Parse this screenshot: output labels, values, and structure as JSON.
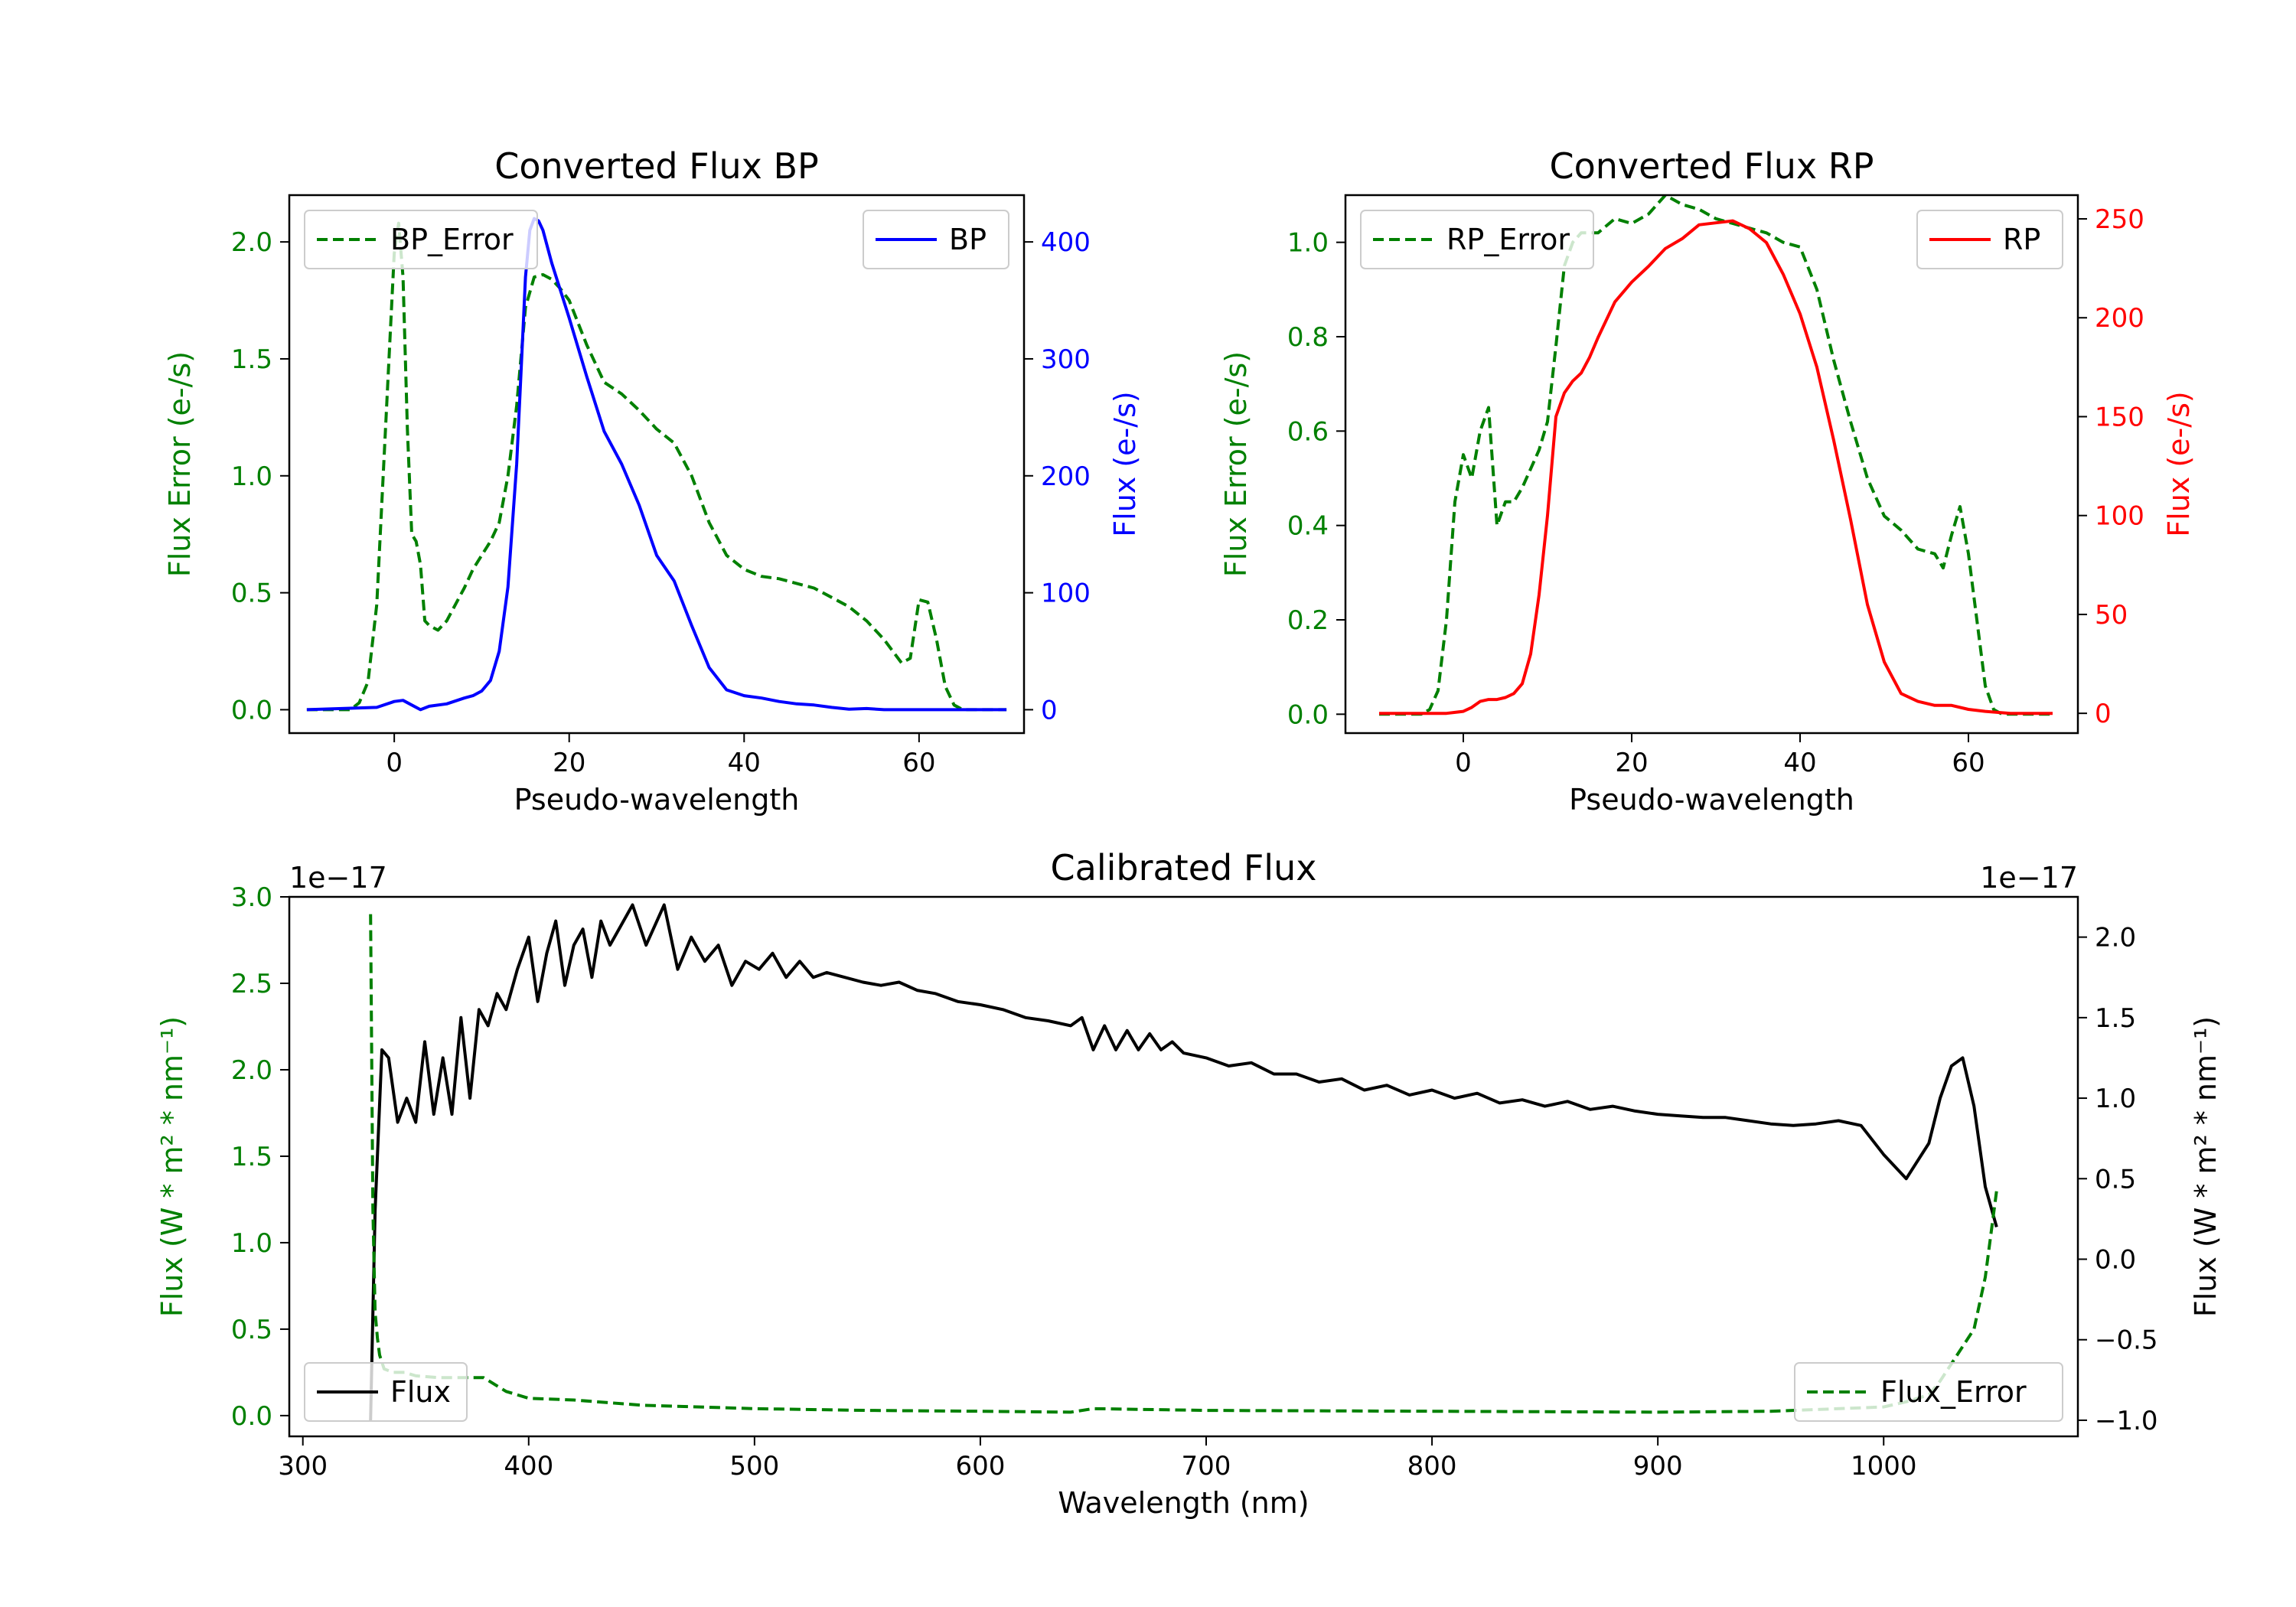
{
  "chart_data": [
    {
      "type": "line",
      "id": "bp",
      "title": "Converted Flux BP",
      "xlabel": "Pseudo-wavelength",
      "ylabel_left": "Flux Error (e-/s)",
      "ylabel_right": "Flux (e-/s)",
      "xlim": [
        -12,
        72
      ],
      "ylim_left": [
        -0.1,
        2.2
      ],
      "ylim_right": [
        -20,
        440
      ],
      "xticks": [
        0,
        20,
        40,
        60
      ],
      "yticks_left": [
        0.0,
        0.5,
        1.0,
        1.5,
        2.0
      ],
      "yticks_right": [
        0,
        100,
        200,
        300,
        400
      ],
      "colors": {
        "left": "#008000",
        "right": "#0000ff"
      },
      "series": [
        {
          "name": "BP_Error",
          "axis": "left",
          "style": "dashed",
          "color": "#008000",
          "legend": "upper left",
          "x": [
            -10,
            -5,
            -4,
            -3,
            -2,
            -1,
            0,
            0.5,
            1,
            1.5,
            2,
            2.5,
            3,
            3.5,
            4,
            5,
            6,
            7,
            8,
            9,
            10,
            11,
            12,
            13,
            14,
            15,
            16,
            17,
            18,
            19,
            20,
            22,
            24,
            26,
            28,
            30,
            32,
            34,
            36,
            38,
            40,
            42,
            44,
            46,
            48,
            50,
            52,
            54,
            56,
            58,
            59,
            60,
            61,
            62,
            63,
            64,
            65,
            70
          ],
          "y": [
            0,
            0,
            0.03,
            0.12,
            0.45,
            1.2,
            1.95,
            2.08,
            1.85,
            1.2,
            0.75,
            0.72,
            0.62,
            0.38,
            0.36,
            0.34,
            0.38,
            0.45,
            0.52,
            0.6,
            0.66,
            0.72,
            0.8,
            1.0,
            1.3,
            1.72,
            1.85,
            1.86,
            1.84,
            1.8,
            1.75,
            1.56,
            1.4,
            1.35,
            1.28,
            1.2,
            1.14,
            1.0,
            0.8,
            0.66,
            0.6,
            0.57,
            0.56,
            0.54,
            0.52,
            0.48,
            0.44,
            0.38,
            0.3,
            0.2,
            0.22,
            0.47,
            0.46,
            0.3,
            0.1,
            0.02,
            0,
            0
          ]
        },
        {
          "name": "BP",
          "axis": "right",
          "style": "solid",
          "color": "#0000ff",
          "legend": "upper right",
          "x": [
            -10,
            -2,
            0,
            1,
            2,
            3,
            4,
            6,
            8,
            9,
            10,
            11,
            12,
            13,
            14,
            14.5,
            15,
            15.5,
            16,
            16.5,
            17,
            18,
            20,
            22,
            24,
            26,
            28,
            30,
            32,
            34,
            36,
            38,
            40,
            42,
            44,
            46,
            48,
            50,
            52,
            54,
            56,
            60,
            65,
            70
          ],
          "y": [
            0,
            2,
            7,
            8,
            4,
            0,
            3,
            5,
            10,
            12,
            16,
            25,
            50,
            105,
            210,
            290,
            370,
            410,
            420,
            418,
            410,
            382,
            335,
            285,
            238,
            210,
            175,
            132,
            110,
            72,
            36,
            17,
            12,
            10,
            7,
            5,
            4,
            2,
            0.5,
            1,
            0,
            0,
            0,
            0
          ]
        }
      ]
    },
    {
      "type": "line",
      "id": "rp",
      "title": "Converted Flux RP",
      "xlabel": "Pseudo-wavelength",
      "ylabel_left": "Flux Error (e-/s)",
      "ylabel_right": "Flux (e-/s)",
      "xlim": [
        -14,
        73
      ],
      "ylim_left": [
        -0.04,
        1.1
      ],
      "ylim_right": [
        -10,
        262
      ],
      "xticks": [
        0,
        20,
        40,
        60
      ],
      "yticks_left": [
        0.0,
        0.2,
        0.4,
        0.6,
        0.8,
        1.0
      ],
      "yticks_right": [
        0,
        50,
        100,
        150,
        200,
        250
      ],
      "colors": {
        "left": "#008000",
        "right": "#ff0000"
      },
      "series": [
        {
          "name": "RP_Error",
          "axis": "left",
          "style": "dashed",
          "color": "#008000",
          "legend": "upper left",
          "x": [
            -10,
            -5,
            -4,
            -3,
            -2,
            -1,
            0,
            1,
            2,
            3,
            4,
            5,
            6,
            7,
            8,
            9,
            10,
            11,
            12,
            13,
            14,
            16,
            18,
            20,
            22,
            24,
            26,
            28,
            30,
            32,
            34,
            36,
            38,
            40,
            42,
            44,
            46,
            48,
            50,
            52,
            54,
            56,
            57,
            58,
            59,
            60,
            61,
            62,
            63,
            64,
            65,
            70
          ],
          "y": [
            0,
            0,
            0.01,
            0.05,
            0.2,
            0.45,
            0.55,
            0.5,
            0.6,
            0.65,
            0.4,
            0.45,
            0.45,
            0.48,
            0.52,
            0.56,
            0.62,
            0.78,
            0.95,
            1.0,
            1.02,
            1.02,
            1.05,
            1.04,
            1.06,
            1.1,
            1.08,
            1.07,
            1.05,
            1.04,
            1.03,
            1.02,
            1.0,
            0.99,
            0.9,
            0.75,
            0.62,
            0.5,
            0.42,
            0.39,
            0.35,
            0.34,
            0.31,
            0.38,
            0.44,
            0.34,
            0.2,
            0.06,
            0.01,
            0,
            0,
            0
          ]
        },
        {
          "name": "RP",
          "axis": "right",
          "style": "solid",
          "color": "#ff0000",
          "legend": "upper right",
          "x": [
            -10,
            -4,
            -2,
            0,
            1,
            2,
            3,
            4,
            5,
            6,
            7,
            8,
            9,
            10,
            11,
            12,
            13,
            14,
            15,
            16,
            18,
            20,
            22,
            24,
            26,
            28,
            30,
            32,
            34,
            36,
            38,
            40,
            42,
            44,
            46,
            48,
            50,
            52,
            54,
            56,
            58,
            60,
            62,
            65,
            70
          ],
          "y": [
            0,
            0,
            0,
            1,
            3,
            6,
            7,
            7,
            8,
            10,
            15,
            30,
            60,
            100,
            150,
            162,
            168,
            172,
            180,
            190,
            208,
            218,
            226,
            235,
            240,
            247,
            248,
            249,
            245,
            238,
            222,
            202,
            175,
            138,
            98,
            55,
            26,
            10,
            6,
            4,
            4,
            2,
            1,
            0,
            0
          ]
        }
      ]
    },
    {
      "type": "line",
      "id": "calibrated",
      "title": "Calibrated Flux",
      "xlabel": "Wavelength (nm)",
      "ylabel_left": "Flux (W * m² * nm⁻¹)",
      "ylabel_right": "Flux (W * m² * nm⁻¹)",
      "offset_left": "1e−17",
      "offset_right": "1e−17",
      "xlim": [
        294,
        1086
      ],
      "ylim_left": [
        -0.12,
        3.0
      ],
      "ylim_right": [
        -1.1,
        2.25
      ],
      "xticks": [
        300,
        400,
        500,
        600,
        700,
        800,
        900,
        1000
      ],
      "yticks_left": [
        0.0,
        0.5,
        1.0,
        1.5,
        2.0,
        2.5,
        3.0
      ],
      "yticks_right": [
        -1.0,
        -0.5,
        0.0,
        0.5,
        1.0,
        1.5,
        2.0
      ],
      "colors": {
        "left": "#008000",
        "right": "#000000"
      },
      "series": [
        {
          "name": "Flux",
          "axis": "right",
          "style": "solid",
          "color": "#000000",
          "legend": "lower left",
          "x": [
            330,
            332,
            335,
            338,
            342,
            346,
            350,
            354,
            358,
            362,
            366,
            370,
            374,
            378,
            382,
            386,
            390,
            395,
            400,
            404,
            408,
            412,
            416,
            420,
            424,
            428,
            432,
            436,
            440,
            446,
            452,
            460,
            466,
            472,
            478,
            484,
            490,
            496,
            502,
            508,
            514,
            520,
            526,
            532,
            540,
            548,
            556,
            564,
            572,
            580,
            590,
            600,
            610,
            620,
            630,
            640,
            645,
            650,
            655,
            660,
            665,
            670,
            675,
            680,
            685,
            690,
            700,
            710,
            720,
            730,
            740,
            750,
            760,
            770,
            780,
            790,
            800,
            810,
            820,
            830,
            840,
            850,
            860,
            870,
            880,
            890,
            900,
            910,
            920,
            930,
            940,
            950,
            960,
            970,
            980,
            990,
            1000,
            1010,
            1020,
            1025,
            1030,
            1035,
            1040,
            1045,
            1050
          ],
          "y": [
            -1.0,
            0.3,
            1.3,
            1.25,
            0.85,
            1.0,
            0.85,
            1.35,
            0.9,
            1.25,
            0.9,
            1.5,
            1.0,
            1.55,
            1.45,
            1.65,
            1.55,
            1.8,
            2.0,
            1.6,
            1.9,
            2.1,
            1.7,
            1.95,
            2.05,
            1.75,
            2.1,
            1.95,
            2.05,
            2.2,
            1.95,
            2.2,
            1.8,
            2.0,
            1.85,
            1.95,
            1.7,
            1.85,
            1.8,
            1.9,
            1.75,
            1.85,
            1.75,
            1.78,
            1.75,
            1.72,
            1.7,
            1.72,
            1.67,
            1.65,
            1.6,
            1.58,
            1.55,
            1.5,
            1.48,
            1.45,
            1.5,
            1.3,
            1.45,
            1.3,
            1.42,
            1.3,
            1.4,
            1.3,
            1.35,
            1.28,
            1.25,
            1.2,
            1.22,
            1.15,
            1.15,
            1.1,
            1.12,
            1.05,
            1.08,
            1.02,
            1.05,
            1.0,
            1.03,
            0.97,
            0.99,
            0.95,
            0.98,
            0.93,
            0.95,
            0.92,
            0.9,
            0.89,
            0.88,
            0.88,
            0.86,
            0.84,
            0.83,
            0.84,
            0.86,
            0.83,
            0.65,
            0.5,
            0.72,
            1.0,
            1.2,
            1.25,
            0.95,
            0.45,
            0.2
          ]
        },
        {
          "name": "Flux_Error",
          "axis": "left",
          "style": "dashed",
          "color": "#008000",
          "legend": "lower right",
          "x": [
            330,
            331,
            332,
            333,
            334,
            336,
            340,
            345,
            350,
            360,
            370,
            380,
            390,
            400,
            420,
            450,
            500,
            550,
            600,
            640,
            650,
            700,
            800,
            900,
            950,
            1000,
            1010,
            1020,
            1025,
            1030,
            1035,
            1040,
            1045,
            1050
          ],
          "y": [
            2.9,
            1.2,
            0.6,
            0.45,
            0.35,
            0.27,
            0.25,
            0.25,
            0.23,
            0.22,
            0.22,
            0.22,
            0.14,
            0.1,
            0.09,
            0.06,
            0.04,
            0.03,
            0.025,
            0.02,
            0.04,
            0.03,
            0.025,
            0.02,
            0.025,
            0.05,
            0.08,
            0.12,
            0.2,
            0.3,
            0.4,
            0.5,
            0.8,
            1.3
          ]
        }
      ]
    }
  ]
}
